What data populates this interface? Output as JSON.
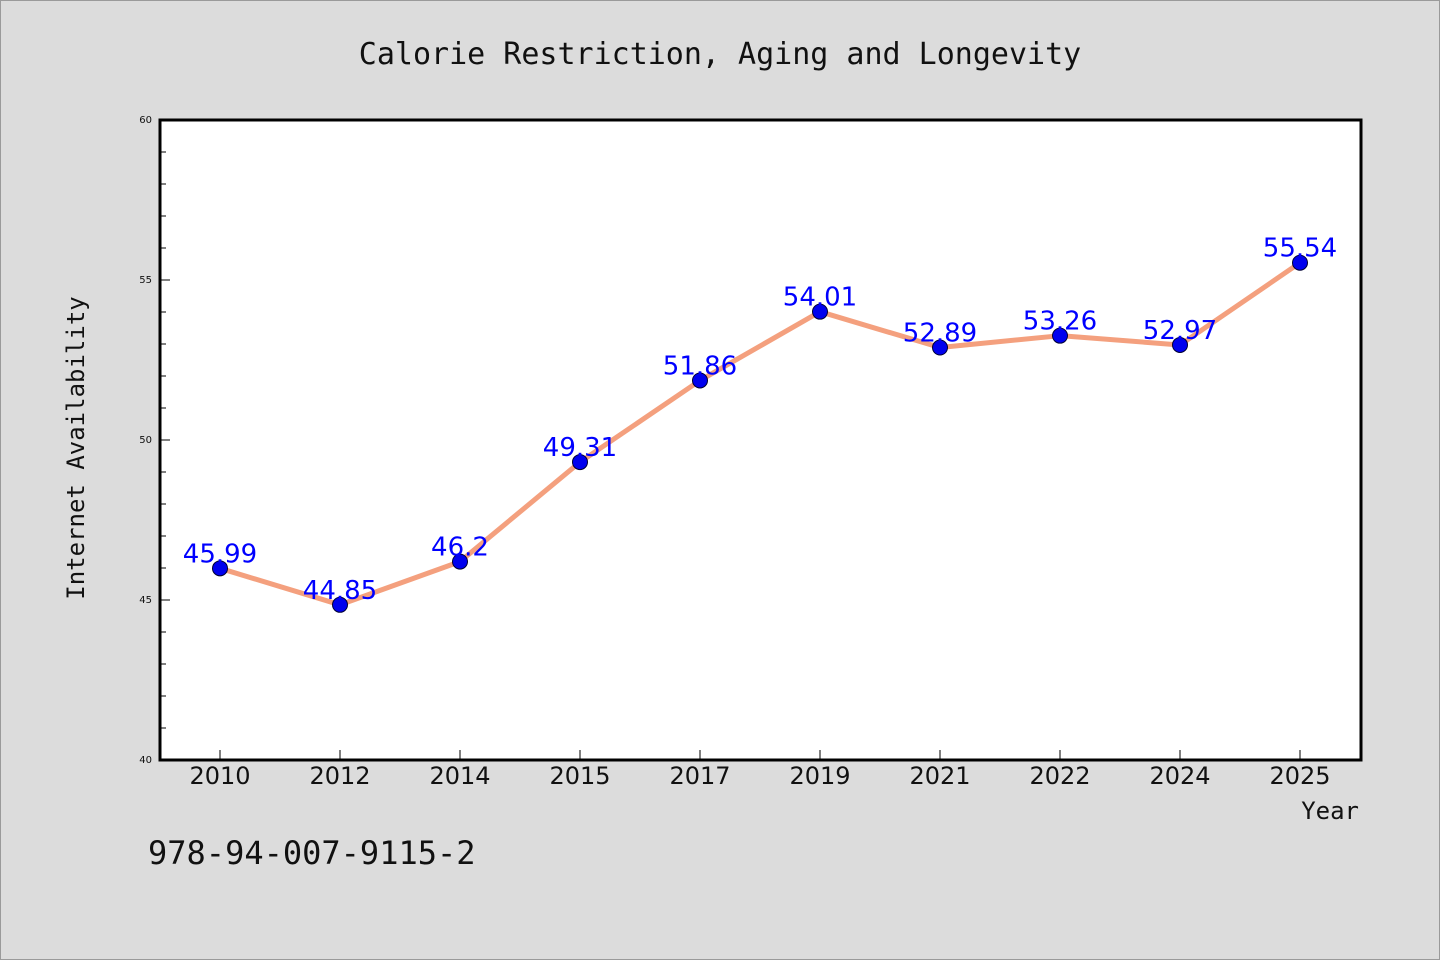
{
  "chart_data": {
    "type": "line",
    "title": "Calorie Restriction, Aging and Longevity",
    "xlabel": "Year",
    "ylabel": "Internet Availability",
    "categories": [
      "2010",
      "2012",
      "2014",
      "2015",
      "2017",
      "2019",
      "2021",
      "2022",
      "2024",
      "2025"
    ],
    "series": [
      {
        "values": [
          45.99,
          44.85,
          46.2,
          49.31,
          51.86,
          54.01,
          52.89,
          53.26,
          52.97,
          55.54
        ],
        "labels": [
          "45.99",
          "44.85",
          "46.2",
          "49.31",
          "51.86",
          "54.01",
          "52.89",
          "53.26",
          "52.97",
          "55.54"
        ]
      }
    ],
    "ylim": [
      40,
      60
    ],
    "yticks": [
      "40",
      "45",
      "50",
      "55",
      "60"
    ],
    "grid": false,
    "colors": {
      "line": "#f4a07e",
      "marker": "#0000ee",
      "marker_edge": "#000033",
      "label": "#0000ff",
      "background": "#dcdcdc",
      "plot_background": "#ffffff"
    }
  },
  "footer": {
    "isbn": "978-94-007-9115-2"
  }
}
